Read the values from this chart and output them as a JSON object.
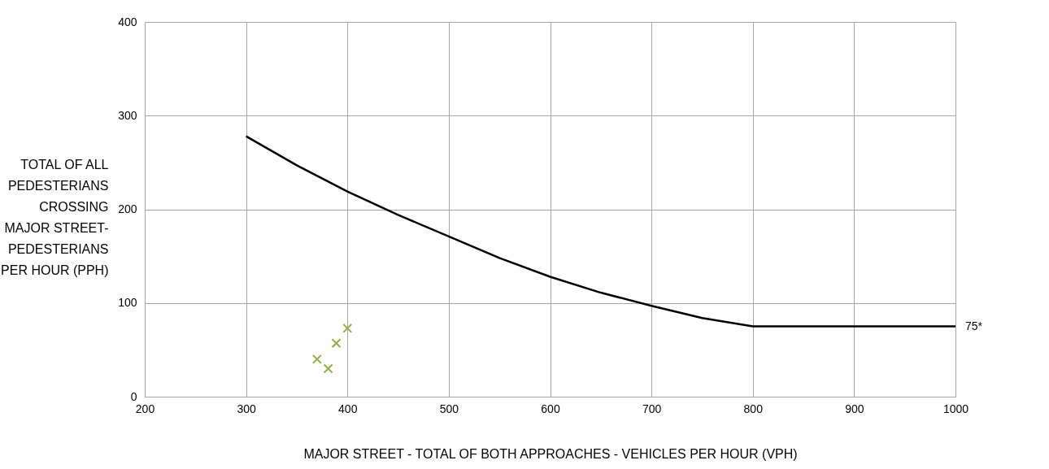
{
  "chart_data": {
    "type": "line",
    "xlabel": "MAJOR STREET - TOTAL OF BOTH APPROACHES - VEHICLES PER HOUR (VPH)",
    "ylabel": "TOTAL OF ALL\nPEDESTERIANS\nCROSSING\nMAJOR STREET-\nPEDESTERIANS\nPER HOUR (PPH)",
    "xlim": [
      200,
      1000
    ],
    "xticks": [
      200,
      300,
      400,
      500,
      600,
      700,
      800,
      900,
      1000
    ],
    "ylim": [
      0,
      400
    ],
    "yticks": [
      0,
      100,
      200,
      300,
      400
    ],
    "grid": true,
    "series": [
      {
        "color": "#000000",
        "marker": "none",
        "x": [
          300,
          350,
          400,
          450,
          500,
          550,
          600,
          650,
          700,
          750,
          800,
          1000
        ],
        "values": [
          278,
          247,
          219,
          194,
          171,
          148,
          128,
          111,
          97,
          84,
          75,
          75
        ]
      },
      {
        "type": "scatter",
        "color": "#8db244",
        "marker": "cross",
        "x": [
          370,
          381,
          389,
          400
        ],
        "values": [
          40,
          30,
          57,
          73
        ]
      }
    ],
    "annotations": [
      {
        "text": "75*",
        "x": 1000,
        "y": 75
      }
    ]
  }
}
